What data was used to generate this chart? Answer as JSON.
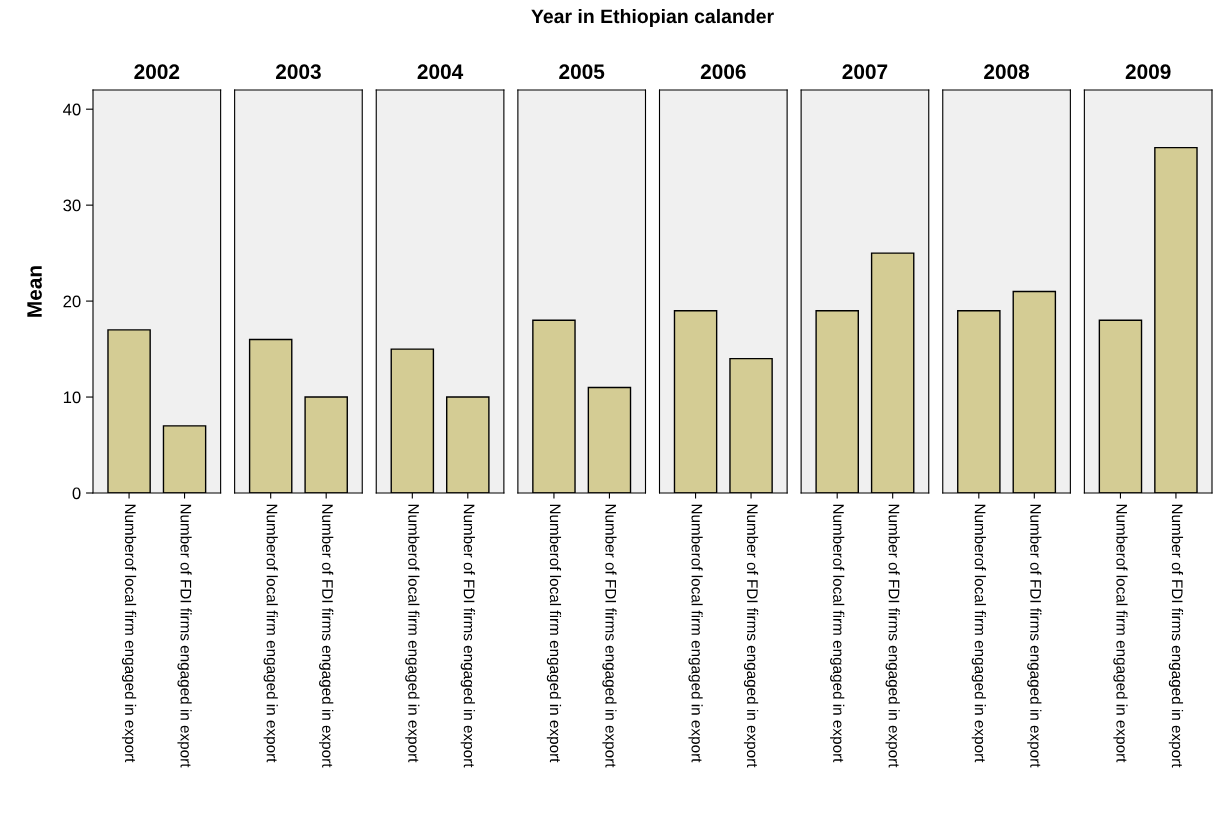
{
  "chart_data": [
    {
      "type": "bar",
      "title": "2002",
      "ylabel": "Mean",
      "annotations": [
        "Year in Ethiopian calander"
      ],
      "categories": [
        "Numberof local firm engaged in export",
        "Number of FDI firms engaged in export"
      ],
      "values": [
        17,
        7
      ],
      "color": "#d4cc94",
      "ylim": [
        0,
        42
      ],
      "yticks": [
        0,
        10,
        20,
        30,
        40
      ],
      "grid": false
    },
    {
      "type": "bar",
      "title": "2003",
      "categories": [
        "Numberof local firm engaged in export",
        "Number of FDI firms engaged in export"
      ],
      "values": [
        16,
        10
      ],
      "color": "#d4cc94",
      "ylim": [
        0,
        42
      ],
      "tick_labels": "x",
      "grid": false
    },
    {
      "type": "bar",
      "title": "2004",
      "categories": [
        "Numberof local firm engaged in export",
        "Number of FDI firms engaged in export"
      ],
      "values": [
        15,
        10
      ],
      "color": "#d4cc94",
      "ylim": [
        0,
        42
      ],
      "tick_labels": "x",
      "grid": false
    },
    {
      "type": "bar",
      "title": "2005",
      "categories": [
        "Numberof local firm engaged in export",
        "Number of FDI firms engaged in export"
      ],
      "values": [
        18,
        11
      ],
      "color": "#d4cc94",
      "ylim": [
        0,
        42
      ],
      "tick_labels": "x",
      "grid": false
    },
    {
      "type": "bar",
      "title": "2006",
      "categories": [
        "Numberof local firm engaged in export",
        "Number of FDI firms engaged in export"
      ],
      "values": [
        19,
        14
      ],
      "color": "#d4cc94",
      "ylim": [
        0,
        42
      ],
      "tick_labels": "x",
      "grid": false
    },
    {
      "type": "bar",
      "title": "2007",
      "categories": [
        "Numberof local firm engaged in export",
        "Number of FDI firms engaged in export"
      ],
      "values": [
        19,
        25
      ],
      "color": "#d4cc94",
      "ylim": [
        0,
        42
      ],
      "tick_labels": "x",
      "grid": false
    },
    {
      "type": "bar",
      "title": "2008",
      "categories": [
        "Numberof local firm engaged in export",
        "Number of FDI firms engaged in export"
      ],
      "values": [
        19,
        21
      ],
      "color": "#d4cc94",
      "ylim": [
        0,
        42
      ],
      "tick_labels": "x",
      "grid": false
    },
    {
      "type": "bar",
      "title": "2009",
      "categories": [
        "Numberof local firm engaged in export",
        "Number of FDI firms engaged in export"
      ],
      "values": [
        18,
        36
      ],
      "color": "#d4cc94",
      "ylim": [
        0,
        42
      ],
      "tick_labels": "x",
      "grid": false
    }
  ]
}
